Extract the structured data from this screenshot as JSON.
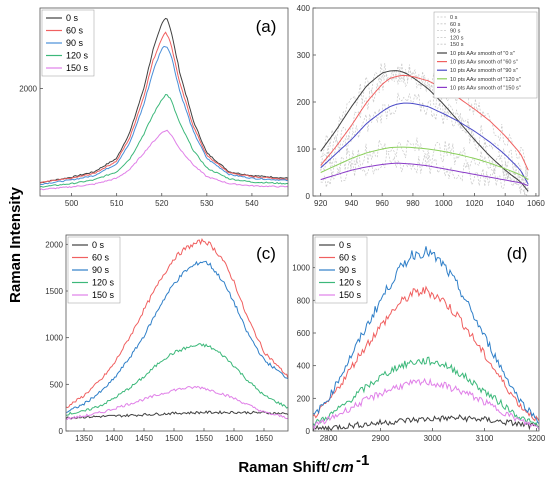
{
  "figure": {
    "ylabel": "Raman Intensity",
    "xlabel": "Raman Shift/",
    "xlabel_unit": "cm",
    "xlabel_exp": "-1"
  },
  "chart_data": [
    {
      "panel": "(a)",
      "type": "line",
      "xlim": [
        493,
        548
      ],
      "ylim": [
        0,
        3500
      ],
      "xticks": [
        500,
        510,
        520,
        530,
        540
      ],
      "yticks": [
        2000
      ],
      "legend_position": "top-left",
      "series": [
        {
          "name": "0 s",
          "color": "#404040",
          "x": [
            493,
            500,
            505,
            510,
            513,
            516,
            518,
            520,
            521,
            522,
            524,
            527,
            530,
            535,
            540,
            548
          ],
          "y": [
            250,
            350,
            450,
            700,
            1200,
            2000,
            2700,
            3200,
            3350,
            3100,
            2300,
            1400,
            800,
            450,
            380,
            330
          ]
        },
        {
          "name": "60 s",
          "color": "#f06060",
          "x": [
            493,
            500,
            505,
            510,
            513,
            516,
            518,
            520,
            521,
            522,
            524,
            527,
            530,
            535,
            540,
            548
          ],
          "y": [
            250,
            330,
            420,
            650,
            1100,
            1850,
            2500,
            2950,
            3050,
            2850,
            2100,
            1300,
            750,
            430,
            360,
            310
          ]
        },
        {
          "name": "90 s",
          "color": "#4a8fd8",
          "x": [
            493,
            500,
            505,
            510,
            513,
            516,
            518,
            520,
            521,
            522,
            524,
            527,
            530,
            535,
            540,
            548
          ],
          "y": [
            220,
            300,
            380,
            600,
            1000,
            1700,
            2300,
            2750,
            2800,
            2650,
            1950,
            1200,
            700,
            400,
            330,
            290
          ]
        },
        {
          "name": "120 s",
          "color": "#3cb87a",
          "x": [
            493,
            500,
            505,
            510,
            513,
            516,
            518,
            520,
            521,
            522,
            524,
            527,
            530,
            535,
            540,
            548
          ],
          "y": [
            170,
            230,
            300,
            450,
            700,
            1150,
            1500,
            1800,
            1900,
            1800,
            1350,
            850,
            520,
            320,
            260,
            230
          ]
        },
        {
          "name": "150 s",
          "color": "#e080e8",
          "x": [
            493,
            500,
            505,
            510,
            513,
            516,
            518,
            520,
            521,
            522,
            524,
            527,
            530,
            535,
            540,
            548
          ],
          "y": [
            120,
            170,
            220,
            330,
            500,
            800,
            1000,
            1180,
            1230,
            1150,
            880,
            580,
            360,
            230,
            190,
            170
          ]
        }
      ]
    },
    {
      "panel": "(b)",
      "type": "line",
      "xlim": [
        915,
        1062
      ],
      "ylim": [
        0,
        400
      ],
      "xticks": [
        920,
        940,
        960,
        980,
        1000,
        1020,
        1040,
        1060
      ],
      "yticks": [
        0,
        100,
        200,
        300,
        400
      ],
      "legend_position": "top-right",
      "raw_legend": [
        "0 s",
        "60 s",
        "90 s",
        "120 s",
        "150 s"
      ],
      "series": [
        {
          "name": "10 pts AAv smooth of \"0 s\"",
          "color": "#404040",
          "x": [
            920,
            930,
            940,
            950,
            960,
            965,
            970,
            975,
            980,
            990,
            1000,
            1010,
            1020,
            1030,
            1040,
            1050,
            1055
          ],
          "y": [
            95,
            140,
            190,
            235,
            262,
            266,
            267,
            262,
            252,
            228,
            195,
            158,
            120,
            85,
            55,
            30,
            10
          ]
        },
        {
          "name": "10 pts AAv smooth of \"60 s\"",
          "color": "#f06060",
          "x": [
            920,
            930,
            940,
            950,
            960,
            965,
            970,
            975,
            980,
            990,
            1000,
            1010,
            1020,
            1030,
            1040,
            1050,
            1055
          ],
          "y": [
            65,
            105,
            150,
            200,
            238,
            250,
            255,
            257,
            254,
            245,
            228,
            208,
            185,
            160,
            128,
            90,
            55
          ]
        },
        {
          "name": "10 pts AAv smooth of \"90 s\"",
          "color": "#4a4ac8",
          "x": [
            920,
            930,
            940,
            950,
            960,
            965,
            970,
            975,
            980,
            990,
            1000,
            1010,
            1020,
            1030,
            1040,
            1050,
            1055
          ],
          "y": [
            60,
            90,
            120,
            155,
            180,
            190,
            196,
            198,
            197,
            190,
            175,
            158,
            138,
            115,
            88,
            55,
            25
          ]
        },
        {
          "name": "10 pts AAv smooth of \"120 s\"",
          "color": "#8ad05a",
          "x": [
            920,
            930,
            940,
            950,
            960,
            965,
            970,
            975,
            980,
            990,
            1000,
            1010,
            1020,
            1030,
            1040,
            1050,
            1055
          ],
          "y": [
            50,
            65,
            80,
            92,
            100,
            103,
            104,
            104,
            103,
            100,
            95,
            88,
            80,
            70,
            58,
            45,
            35
          ]
        },
        {
          "name": "10 pts AAv smooth of \"150 s\"",
          "color": "#8a3ac8",
          "x": [
            920,
            930,
            940,
            950,
            960,
            965,
            970,
            975,
            980,
            990,
            1000,
            1010,
            1020,
            1030,
            1040,
            1050,
            1055
          ],
          "y": [
            35,
            45,
            55,
            62,
            67,
            69,
            70,
            69,
            68,
            64,
            58,
            52,
            46,
            40,
            34,
            28,
            22
          ]
        }
      ]
    },
    {
      "panel": "(c)",
      "type": "line",
      "xlim": [
        1320,
        1690
      ],
      "ylim": [
        0,
        2100
      ],
      "xticks": [
        1350,
        1400,
        1450,
        1500,
        1550,
        1600,
        1650
      ],
      "yticks": [
        0,
        500,
        1000,
        1500,
        2000
      ],
      "legend_position": "top-left",
      "series": [
        {
          "name": "0 s",
          "color": "#404040",
          "x": [
            1320,
            1350,
            1400,
            1450,
            1500,
            1550,
            1600,
            1650,
            1690
          ],
          "y": [
            140,
            150,
            160,
            175,
            190,
            200,
            200,
            195,
            185
          ]
        },
        {
          "name": "60 s",
          "color": "#f06060",
          "x": [
            1320,
            1350,
            1380,
            1400,
            1430,
            1450,
            1480,
            1500,
            1520,
            1540,
            1550,
            1560,
            1580,
            1600,
            1620,
            1650,
            1690
          ],
          "y": [
            250,
            380,
            560,
            720,
            1050,
            1300,
            1650,
            1850,
            1960,
            2020,
            2040,
            2000,
            1850,
            1600,
            1250,
            850,
            580
          ]
        },
        {
          "name": "90 s",
          "color": "#2f7fc8",
          "x": [
            1320,
            1350,
            1380,
            1400,
            1430,
            1450,
            1480,
            1500,
            1520,
            1540,
            1550,
            1560,
            1580,
            1600,
            1620,
            1650,
            1690
          ],
          "y": [
            200,
            290,
            430,
            560,
            820,
            1020,
            1380,
            1580,
            1720,
            1800,
            1820,
            1780,
            1620,
            1380,
            1080,
            760,
            560
          ]
        },
        {
          "name": "120 s",
          "color": "#3cb87a",
          "x": [
            1320,
            1350,
            1380,
            1400,
            1430,
            1450,
            1480,
            1500,
            1520,
            1540,
            1550,
            1560,
            1580,
            1600,
            1620,
            1650,
            1690
          ],
          "y": [
            180,
            210,
            280,
            350,
            480,
            580,
            760,
            840,
            890,
            920,
            920,
            900,
            820,
            700,
            560,
            380,
            250
          ]
        },
        {
          "name": "150 s",
          "color": "#e080e8",
          "x": [
            1320,
            1350,
            1380,
            1400,
            1430,
            1450,
            1480,
            1500,
            1520,
            1540,
            1550,
            1560,
            1580,
            1600,
            1620,
            1650,
            1690
          ],
          "y": [
            130,
            160,
            200,
            240,
            300,
            340,
            400,
            440,
            460,
            470,
            460,
            440,
            400,
            350,
            290,
            200,
            140
          ]
        }
      ]
    },
    {
      "panel": "(d)",
      "type": "line",
      "xlim": [
        2770,
        3205
      ],
      "ylim": [
        0,
        1200
      ],
      "xticks": [
        2800,
        2900,
        3000,
        3100,
        3200
      ],
      "yticks": [
        0,
        200,
        400,
        600,
        800,
        1000
      ],
      "legend_position": "top-left",
      "series": [
        {
          "name": "0 s",
          "color": "#404040",
          "x": [
            2770,
            2800,
            2850,
            2900,
            2950,
            3000,
            3050,
            3100,
            3150,
            3200
          ],
          "y": [
            10,
            20,
            35,
            50,
            65,
            75,
            80,
            70,
            50,
            25
          ]
        },
        {
          "name": "60 s",
          "color": "#f06060",
          "x": [
            2770,
            2800,
            2830,
            2860,
            2900,
            2930,
            2960,
            2990,
            3020,
            3050,
            3080,
            3110,
            3140,
            3170,
            3205
          ],
          "y": [
            80,
            180,
            320,
            470,
            640,
            760,
            840,
            860,
            800,
            700,
            560,
            420,
            280,
            150,
            60
          ]
        },
        {
          "name": "90 s",
          "color": "#2f7fc8",
          "x": [
            2770,
            2800,
            2830,
            2860,
            2900,
            2930,
            2960,
            2990,
            3020,
            3050,
            3080,
            3110,
            3140,
            3170,
            3205
          ],
          "y": [
            90,
            200,
            380,
            560,
            800,
            960,
            1080,
            1100,
            1020,
            880,
            700,
            520,
            340,
            180,
            60
          ]
        },
        {
          "name": "120 s",
          "color": "#3cb87a",
          "x": [
            2770,
            2800,
            2830,
            2860,
            2900,
            2930,
            2960,
            2990,
            3020,
            3050,
            3080,
            3110,
            3140,
            3170,
            3205
          ],
          "y": [
            40,
            90,
            160,
            240,
            330,
            390,
            420,
            430,
            410,
            360,
            290,
            220,
            150,
            80,
            30
          ]
        },
        {
          "name": "150 s",
          "color": "#e080e8",
          "x": [
            2770,
            2800,
            2830,
            2860,
            2900,
            2930,
            2960,
            2990,
            3020,
            3050,
            3080,
            3110,
            3140,
            3170,
            3205
          ],
          "y": [
            30,
            70,
            120,
            170,
            230,
            270,
            290,
            300,
            280,
            250,
            210,
            160,
            110,
            60,
            20
          ]
        }
      ]
    }
  ]
}
